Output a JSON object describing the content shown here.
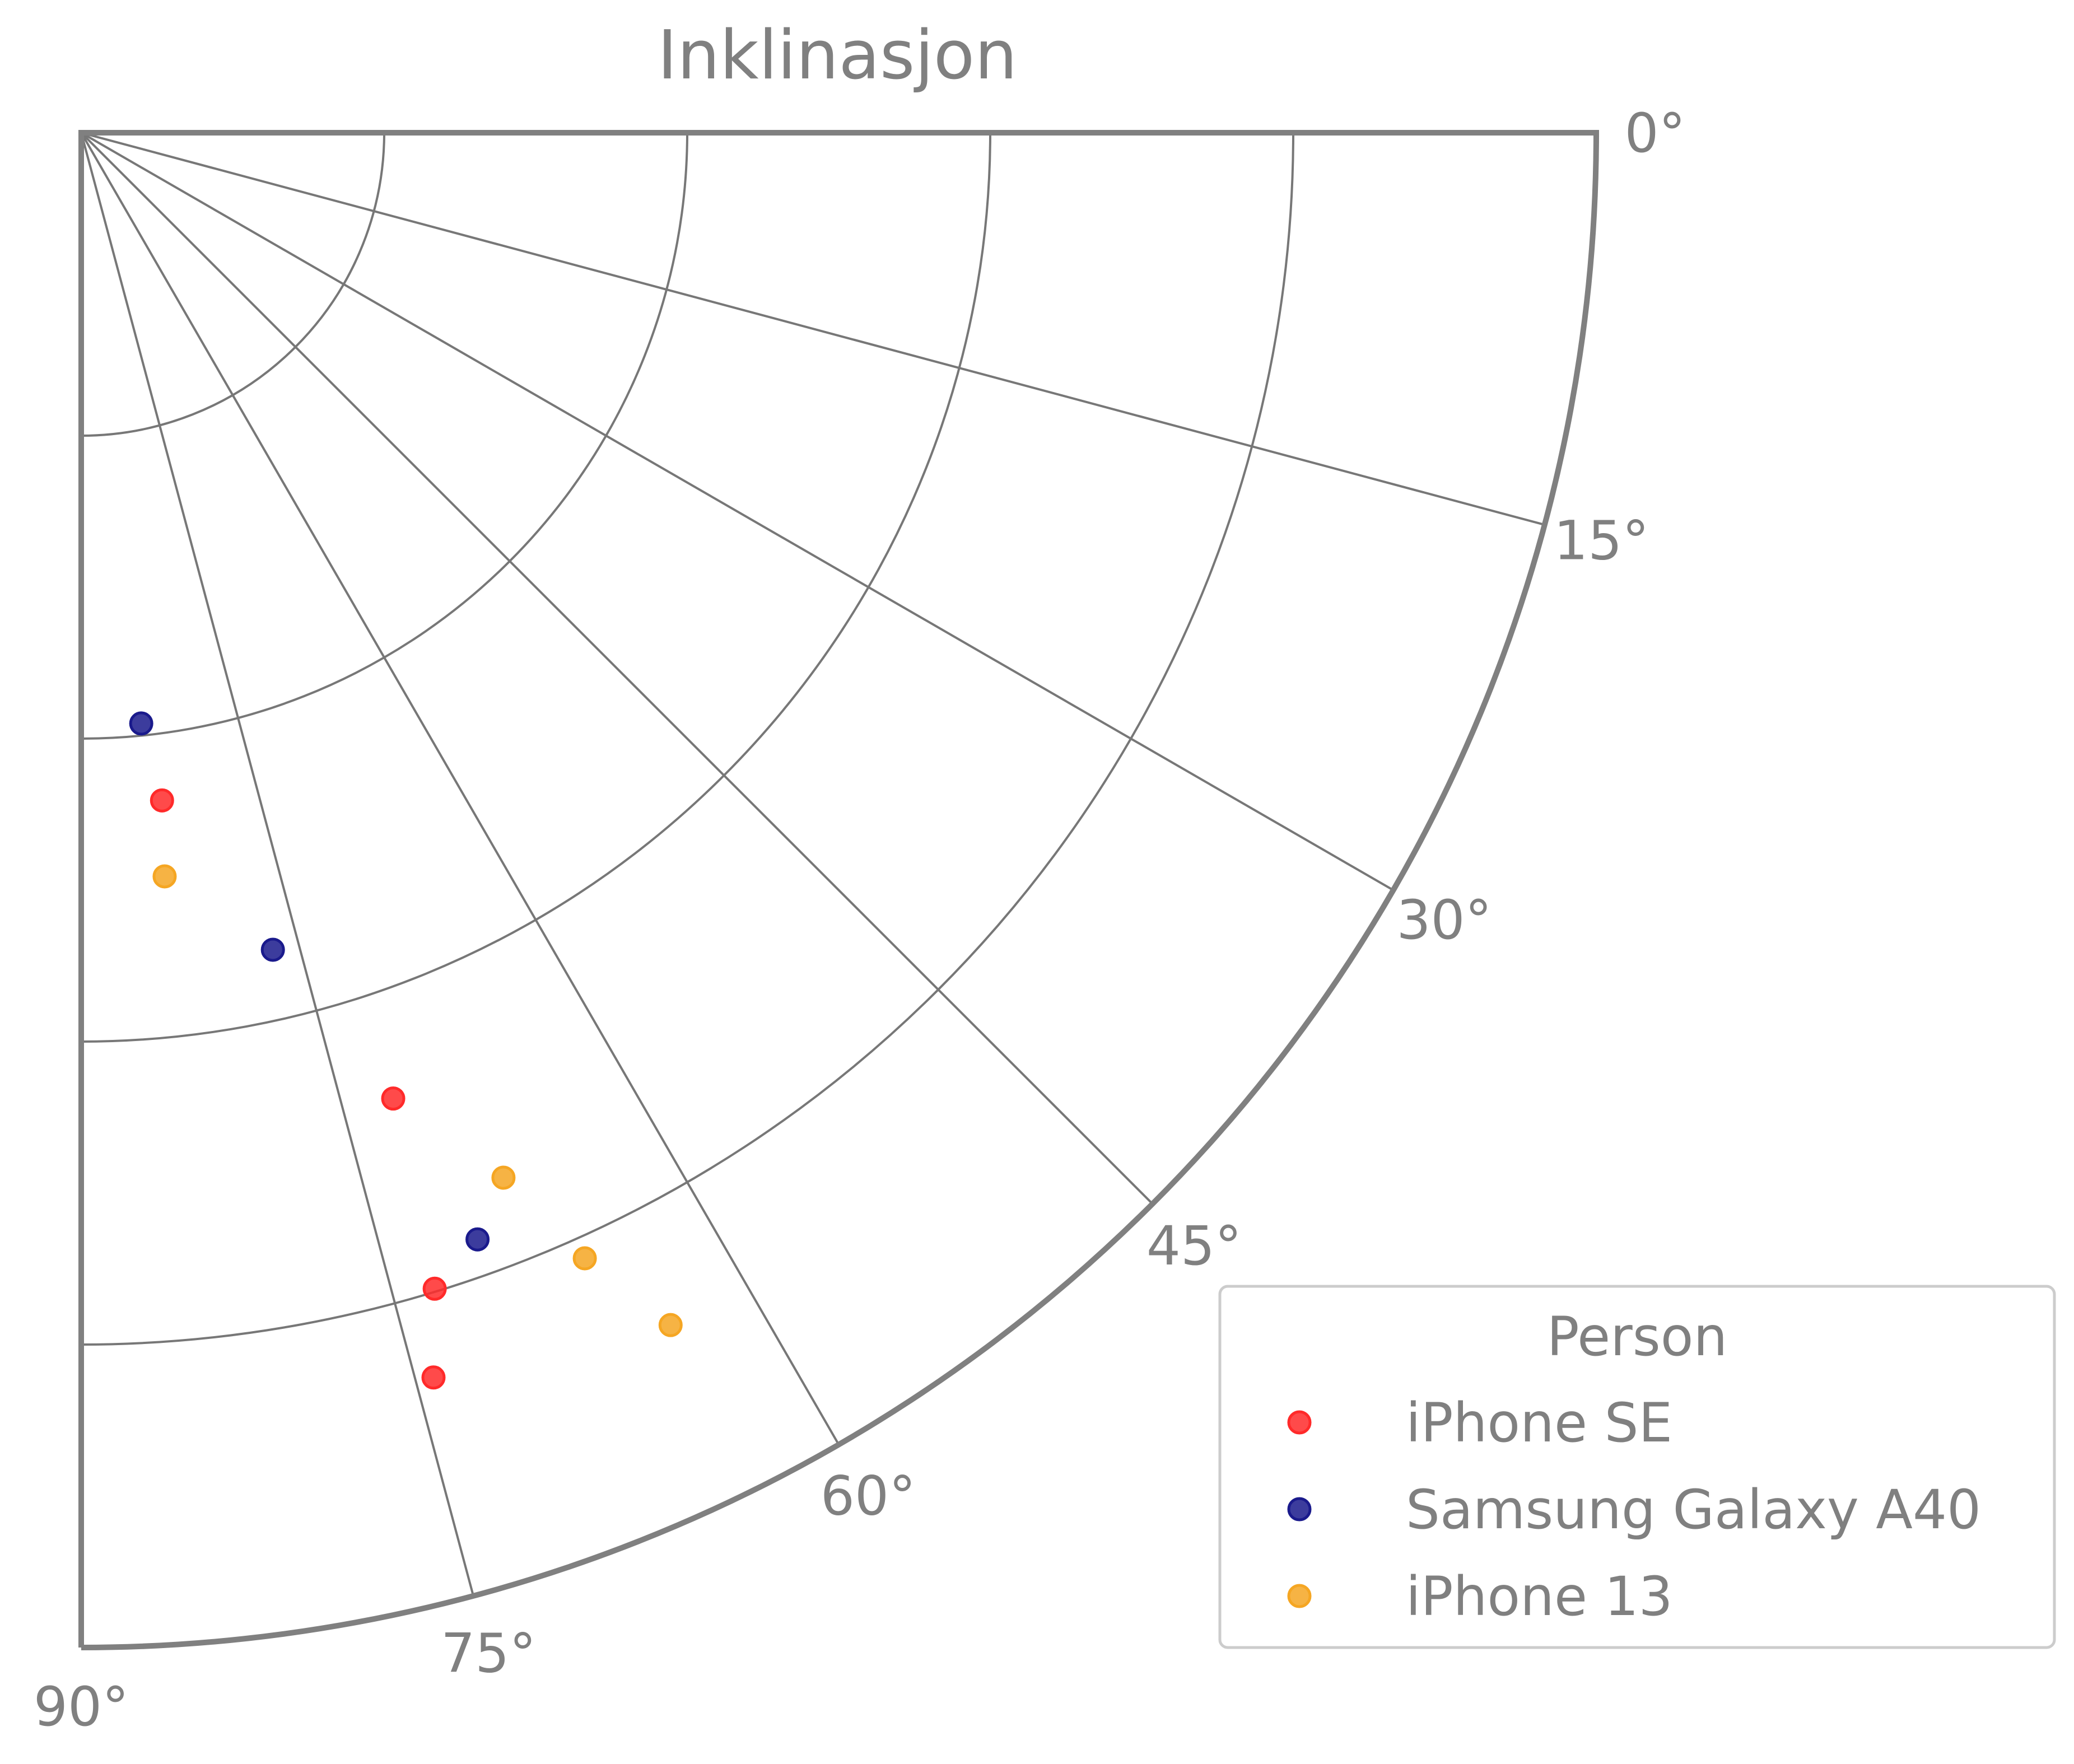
{
  "chart_data": {
    "type": "scatter",
    "polar": true,
    "title": "Inklinasjon",
    "theta_range": [
      0,
      90
    ],
    "r_range": [
      0,
      5
    ],
    "r_gridlines": [
      1,
      2,
      3,
      4
    ],
    "theta_ticks": [
      {
        "value": 0,
        "label": "0°"
      },
      {
        "value": 15,
        "label": "15°"
      },
      {
        "value": 30,
        "label": "30°"
      },
      {
        "value": 45,
        "label": "45°"
      },
      {
        "value": 60,
        "label": "60°"
      },
      {
        "value": 75,
        "label": "75°"
      },
      {
        "value": 90,
        "label": "90°"
      }
    ],
    "grid": true,
    "legend": {
      "title": "Person",
      "placement": "lower-right",
      "entries": [
        "iPhone SE",
        "Samsung Galaxy A40",
        "iPhone 13"
      ]
    },
    "series": [
      {
        "name": "iPhone SE",
        "color": "#ff2a2a",
        "points": [
          {
            "theta": 83.1,
            "r": 2.22
          },
          {
            "theta": 72.1,
            "r": 3.35
          },
          {
            "theta": 73.0,
            "r": 3.99
          },
          {
            "theta": 74.2,
            "r": 4.27
          }
        ]
      },
      {
        "name": "Samsung Galaxy A40",
        "color": "#1a1a8c",
        "points": [
          {
            "theta": 84.2,
            "r": 1.96
          },
          {
            "theta": 76.8,
            "r": 2.77
          },
          {
            "theta": 70.3,
            "r": 3.88
          }
        ]
      },
      {
        "name": "iPhone 13",
        "color": "#f5a623",
        "points": [
          {
            "theta": 83.6,
            "r": 2.47
          },
          {
            "theta": 68.0,
            "r": 3.72
          },
          {
            "theta": 65.9,
            "r": 4.07
          },
          {
            "theta": 63.7,
            "r": 4.39
          }
        ]
      }
    ]
  }
}
